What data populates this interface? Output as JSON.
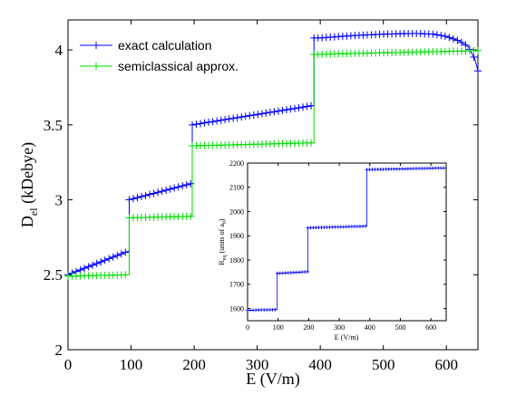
{
  "chart_data": [
    {
      "type": "line",
      "title": "",
      "xlabel": "E (V/m)",
      "ylabel_main": "D",
      "ylabel_sub": "el",
      "ylabel_unit": " (kDebye)",
      "xlim": [
        0,
        650
      ],
      "ylim": [
        2,
        4.2
      ],
      "xticks": [
        "0",
        "100",
        "200",
        "300",
        "400",
        "500",
        "600"
      ],
      "yticks": [
        "2",
        "2.5",
        "3",
        "3.5",
        "4"
      ],
      "legend_position": "top-left",
      "series": [
        {
          "name": "exact calculation",
          "color": "#0000ff",
          "marker": "plus",
          "segments": [
            {
              "x": [
                0,
                97
              ],
              "y": [
                2.5,
                2.66
              ]
            },
            {
              "x": [
                97,
                197
              ],
              "y": [
                3.0,
                3.11
              ]
            },
            {
              "x": [
                197,
                390
              ],
              "y": [
                3.5,
                3.63
              ]
            },
            {
              "x": [
                390,
                400,
                450,
                500,
                550,
                580,
                600,
                620,
                635,
                645,
                650
              ],
              "y": [
                4.08,
                4.08,
                4.095,
                4.105,
                4.11,
                4.105,
                4.09,
                4.06,
                4.02,
                3.94,
                3.86
              ]
            }
          ],
          "jumps": [
            [
              97,
              2.66,
              3.0
            ],
            [
              197,
              3.11,
              3.5
            ],
            [
              390,
              3.63,
              4.08
            ]
          ]
        },
        {
          "name": "semiclassical approx.",
          "color": "#00dd00",
          "marker": "plus",
          "segments": [
            {
              "x": [
                0,
                97
              ],
              "y": [
                2.49,
                2.5
              ]
            },
            {
              "x": [
                97,
                197
              ],
              "y": [
                2.88,
                2.89
              ]
            },
            {
              "x": [
                197,
                390
              ],
              "y": [
                3.36,
                3.38
              ]
            },
            {
              "x": [
                390,
                650
              ],
              "y": [
                3.97,
                3.995
              ]
            }
          ],
          "jumps": [
            [
              97,
              2.5,
              2.88
            ],
            [
              197,
              2.89,
              3.36
            ],
            [
              390,
              3.38,
              3.97
            ]
          ]
        }
      ]
    },
    {
      "type": "line",
      "title": "",
      "xlabel": "E (V/m)",
      "ylabel": "R_eq (units of a_0)",
      "ylabel_main": "R",
      "ylabel_sub": "eq",
      "ylabel_mid": " (units of a",
      "ylabel_sub2": "0",
      "ylabel_end": ")",
      "xlim": [
        0,
        650
      ],
      "ylim": [
        1550,
        2200
      ],
      "xticks": [
        "0",
        "100",
        "200",
        "300",
        "400",
        "500",
        "600"
      ],
      "yticks": [
        "1600",
        "1700",
        "1800",
        "1900",
        "2000",
        "2100",
        "2200"
      ],
      "series": [
        {
          "color": "#0000ff",
          "marker": "plus",
          "segments": [
            {
              "x": [
                0,
                97
              ],
              "y": [
                1593,
                1596
              ]
            },
            {
              "x": [
                97,
                197
              ],
              "y": [
                1745,
                1752
              ]
            },
            {
              "x": [
                197,
                390
              ],
              "y": [
                1933,
                1940
              ]
            },
            {
              "x": [
                390,
                650
              ],
              "y": [
                2173,
                2180
              ]
            }
          ],
          "jumps": [
            [
              97,
              1596,
              1745
            ],
            [
              197,
              1752,
              1933
            ],
            [
              390,
              1940,
              2173
            ]
          ]
        }
      ]
    }
  ]
}
